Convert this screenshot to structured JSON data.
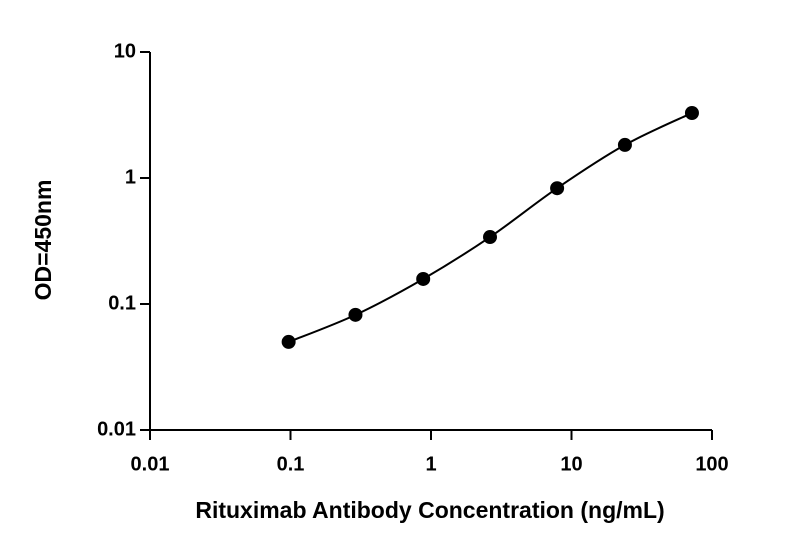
{
  "chart_data": {
    "type": "scatter",
    "x_label": "Rituximab Antibody Concentration (ng/mL)",
    "y_label": "OD=450nm",
    "x": [
      0.097,
      0.29,
      0.88,
      2.63,
      7.9,
      24,
      72
    ],
    "values": [
      0.05,
      0.082,
      0.158,
      0.34,
      0.83,
      1.83,
      3.28
    ],
    "color": "#000000",
    "fit_line": true,
    "xscale": "log",
    "yscale": "log",
    "xlim": [
      0.01,
      100
    ],
    "ylim": [
      0.01,
      10
    ],
    "xticks": [
      0.01,
      0.1,
      1,
      10,
      100
    ],
    "yticks": [
      0.01,
      0.1,
      1,
      10
    ]
  }
}
